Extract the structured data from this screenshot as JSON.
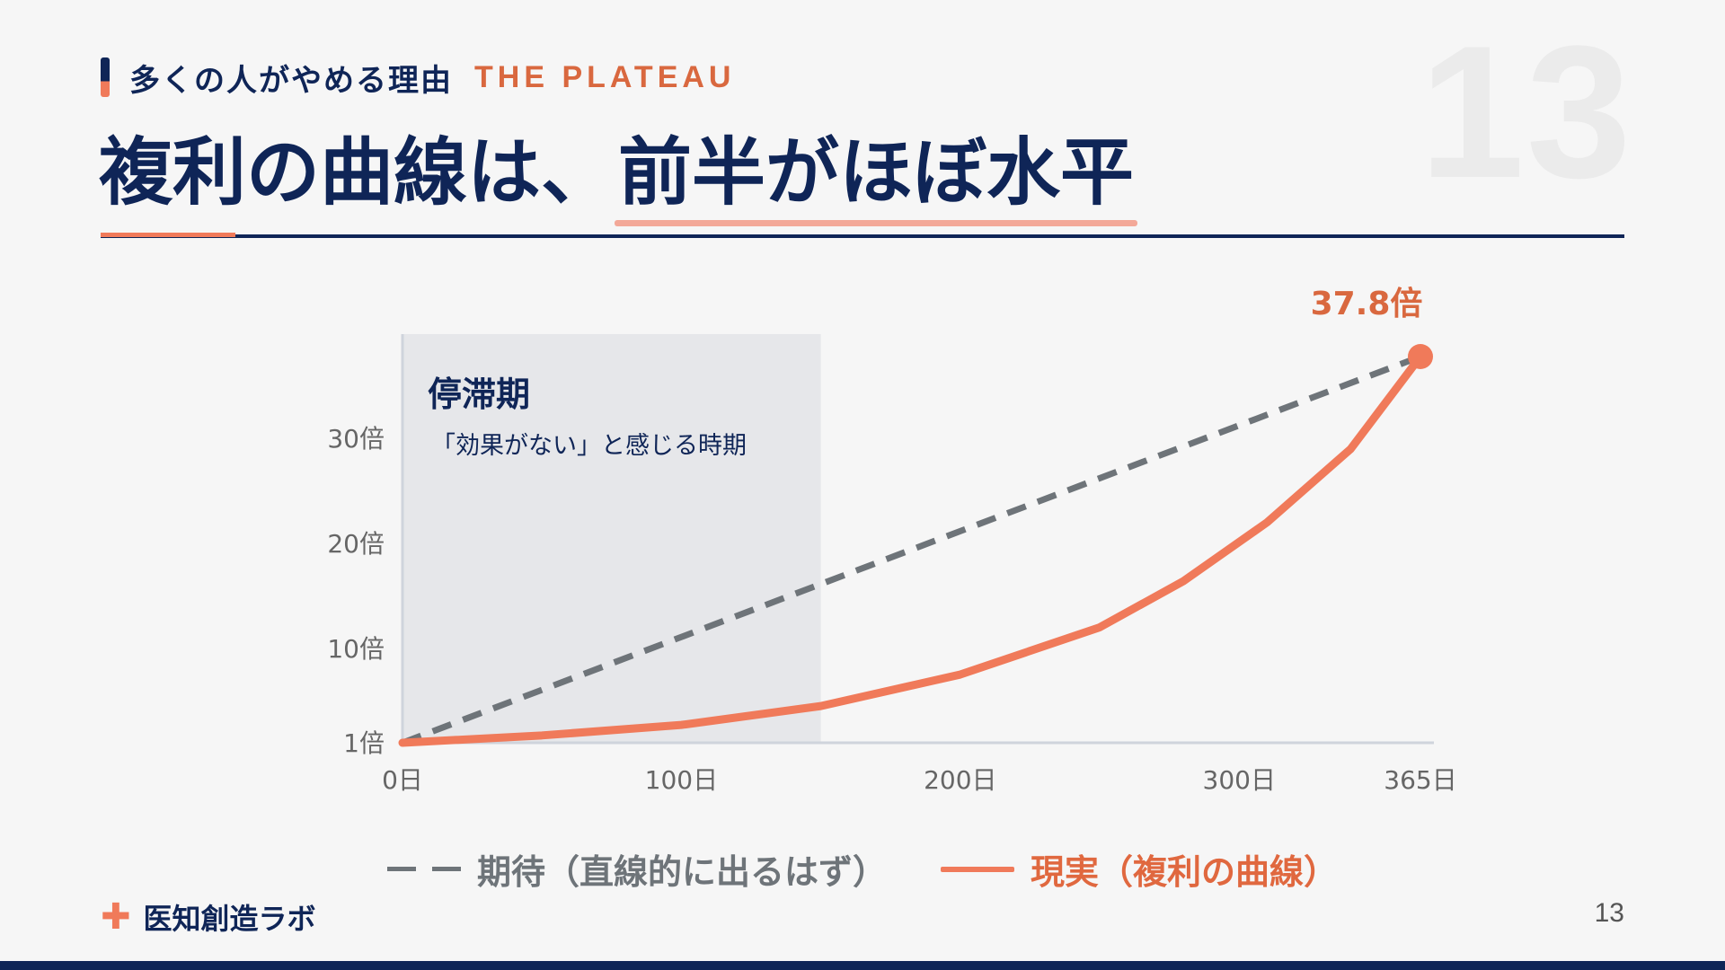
{
  "slide": {
    "number_watermark": "13",
    "kicker_jp": "多くの人がやめる理由",
    "kicker_en": "THE PLATEAU",
    "title_part1": "複利の曲線は、",
    "title_part2": "前半がほぼ水平",
    "brand": "医知創造ラボ",
    "page_number": "13"
  },
  "colors": {
    "navy": "#0f2557",
    "accent": "#f07a5a",
    "expected_line": "#6e7479",
    "plateau_band": "#e6e7ea"
  },
  "icons": {
    "brand": "plus-icon"
  },
  "chart_data": {
    "type": "line",
    "x_unit": "日",
    "y_unit": "倍",
    "xlim": [
      0,
      365
    ],
    "ylim": [
      1,
      37.8
    ],
    "x_ticks": [
      {
        "value": 0,
        "label": "0日"
      },
      {
        "value": 100,
        "label": "100日"
      },
      {
        "value": 200,
        "label": "200日"
      },
      {
        "value": 300,
        "label": "300日"
      },
      {
        "value": 365,
        "label": "365日"
      }
    ],
    "y_ticks": [
      {
        "value": 1,
        "label": "1倍"
      },
      {
        "value": 10,
        "label": "10倍"
      },
      {
        "value": 20,
        "label": "20倍"
      },
      {
        "value": 30,
        "label": "30倍"
      }
    ],
    "plateau": {
      "x_start": 0,
      "x_end": 150,
      "title": "停滞期",
      "subtitle": "「効果がない」と感じる時期"
    },
    "series": [
      {
        "name": "期待（直線的に出るはず）",
        "style": "dashed",
        "color": "#6e7479",
        "points": [
          [
            0,
            1
          ],
          [
            365,
            37.8
          ]
        ]
      },
      {
        "name": "現実（複利の曲線）",
        "style": "solid",
        "color": "#f07a5a",
        "points": [
          [
            0,
            1
          ],
          [
            50,
            1.7
          ],
          [
            100,
            2.7
          ],
          [
            150,
            4.5
          ],
          [
            200,
            7.5
          ],
          [
            250,
            12.0
          ],
          [
            280,
            16.4
          ],
          [
            310,
            22.0
          ],
          [
            340,
            29.0
          ],
          [
            365,
            37.8
          ]
        ]
      }
    ],
    "end_label": "37.8倍"
  }
}
